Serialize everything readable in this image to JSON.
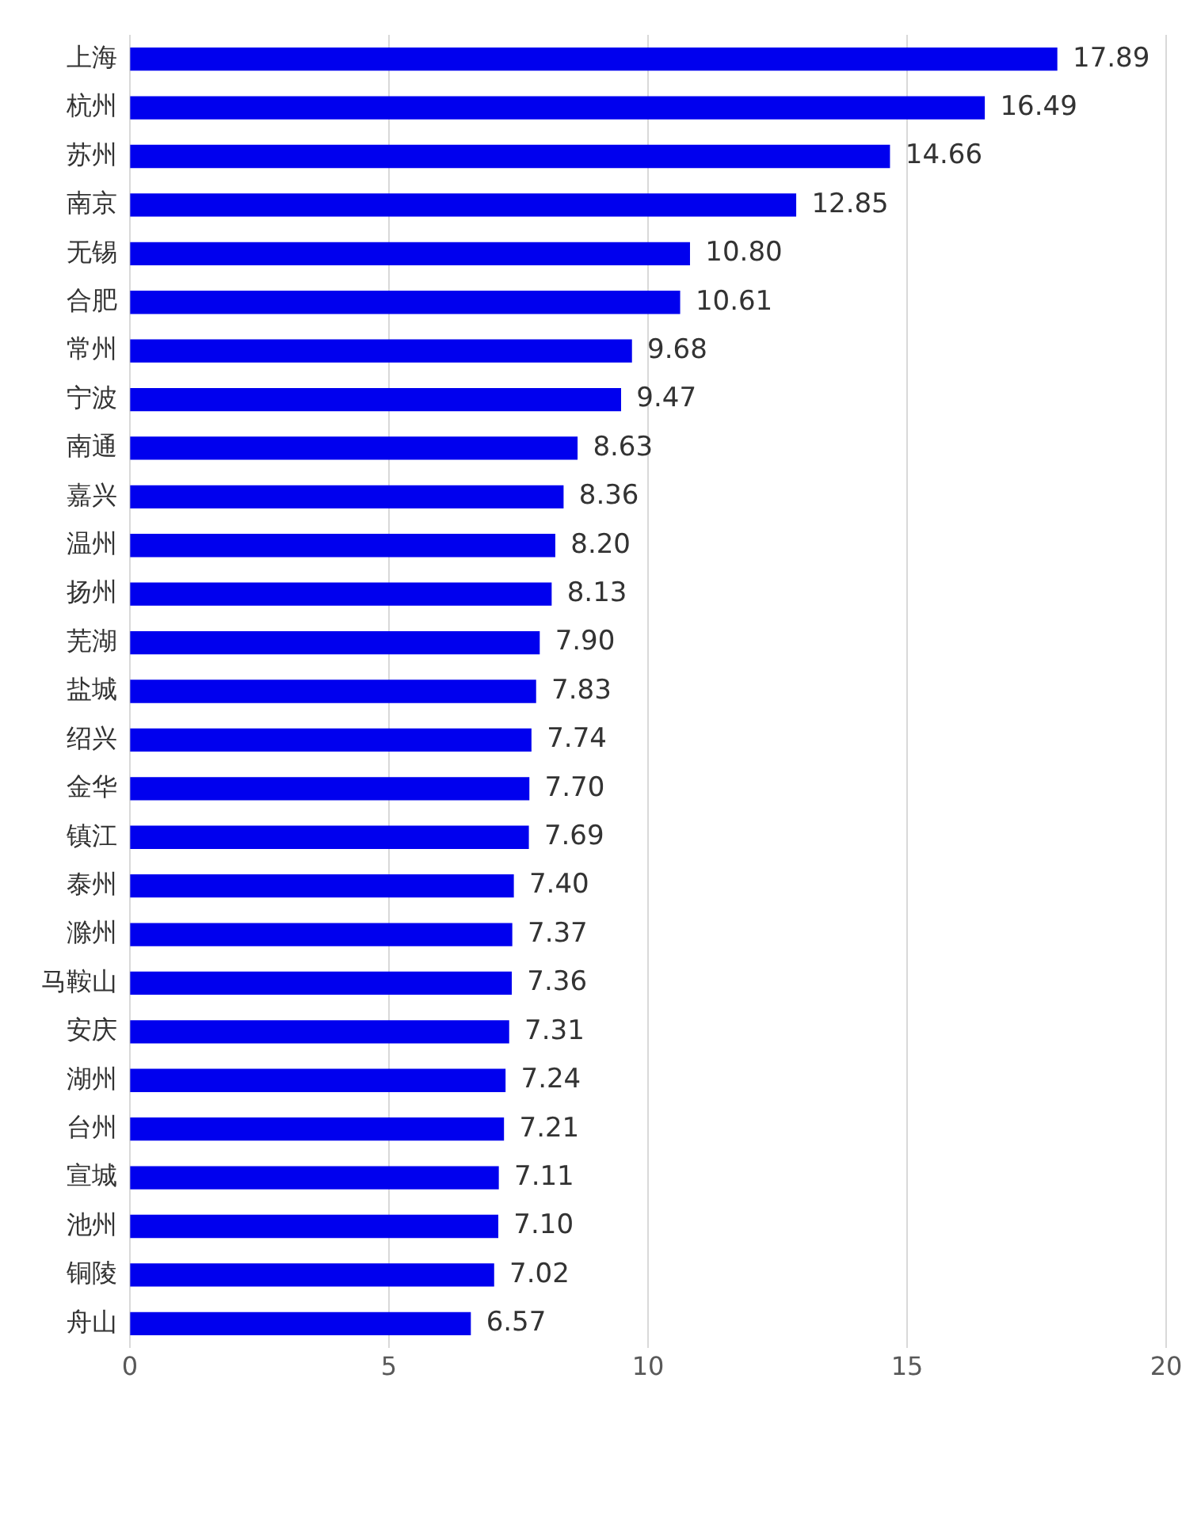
{
  "chart_data": {
    "type": "bar",
    "orientation": "horizontal",
    "categories": [
      "上海",
      "杭州",
      "苏州",
      "南京",
      "无锡",
      "合肥",
      "常州",
      "宁波",
      "南通",
      "嘉兴",
      "温州",
      "扬州",
      "芜湖",
      "盐城",
      "绍兴",
      "金华",
      "镇江",
      "泰州",
      "滁州",
      "马鞍山",
      "安庆",
      "湖州",
      "台州",
      "宣城",
      "池州",
      "铜陵",
      "舟山"
    ],
    "values": [
      17.89,
      16.49,
      14.66,
      12.85,
      10.8,
      10.61,
      9.68,
      9.47,
      8.63,
      8.36,
      8.2,
      8.13,
      7.9,
      7.83,
      7.74,
      7.7,
      7.69,
      7.4,
      7.37,
      7.36,
      7.31,
      7.24,
      7.21,
      7.11,
      7.1,
      7.02,
      6.57
    ],
    "value_labels": [
      "17.89",
      "16.49",
      "14.66",
      "12.85",
      "10.80",
      "10.61",
      "9.68",
      "9.47",
      "8.63",
      "8.36",
      "8.20",
      "8.13",
      "7.90",
      "7.83",
      "7.74",
      "7.70",
      "7.69",
      "7.40",
      "7.37",
      "7.36",
      "7.31",
      "7.24",
      "7.21",
      "7.11",
      "7.10",
      "7.02",
      "6.57"
    ],
    "color": "#0000ee",
    "xlim": [
      0,
      20
    ],
    "xticks": [
      0,
      5,
      10,
      15,
      20
    ],
    "grid": "x",
    "legend": false
  }
}
